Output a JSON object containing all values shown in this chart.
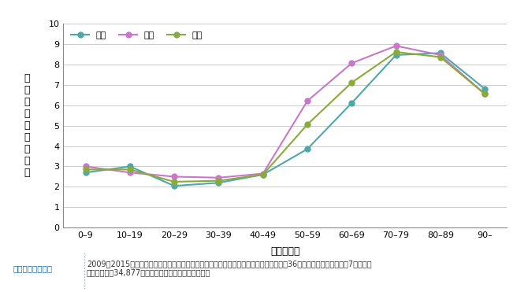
{
  "categories": [
    "0–9",
    "10–19",
    "20–29",
    "30–39",
    "40–49",
    "50–59",
    "60–69",
    "70–79",
    "80–89",
    "90–"
  ],
  "male": [
    2.7,
    3.0,
    2.05,
    2.2,
    2.6,
    3.85,
    6.1,
    8.45,
    8.55,
    6.8
  ],
  "female": [
    3.0,
    2.7,
    2.5,
    2.45,
    2.65,
    6.2,
    8.05,
    8.9,
    8.45,
    6.55
  ],
  "total": [
    2.85,
    2.85,
    2.25,
    2.3,
    2.6,
    5.05,
    7.1,
    8.6,
    8.35,
    6.55
  ],
  "male_color": "#4fa8a8",
  "female_color": "#c878c8",
  "total_color": "#8aaa3a",
  "ylabel": "発\n症\n率\n（\n千\n人\n・\n年\n）",
  "xlabel": "年齢（歳）",
  "ylim": [
    0,
    10
  ],
  "yticks": [
    0,
    1,
    2,
    3,
    4,
    5,
    6,
    7,
    8,
    9,
    10
  ],
  "legend_male": "男性",
  "legend_female": "女性",
  "legend_total": "合計",
  "note_label": "調査の対象と方法",
  "note_text": "2009〜2015年に帯状疱疹を発症し、宮崎県皮膚科医会に属する医療機関（皮膚科診療所36施設、総合病院の皮膚科7施設）を\n受診した患者34,877例の性別および年齢を調査した。",
  "bg_color": "#ffffff",
  "note_bg_color": "#e8f4f8",
  "note_border_color": "#7ab8d4"
}
